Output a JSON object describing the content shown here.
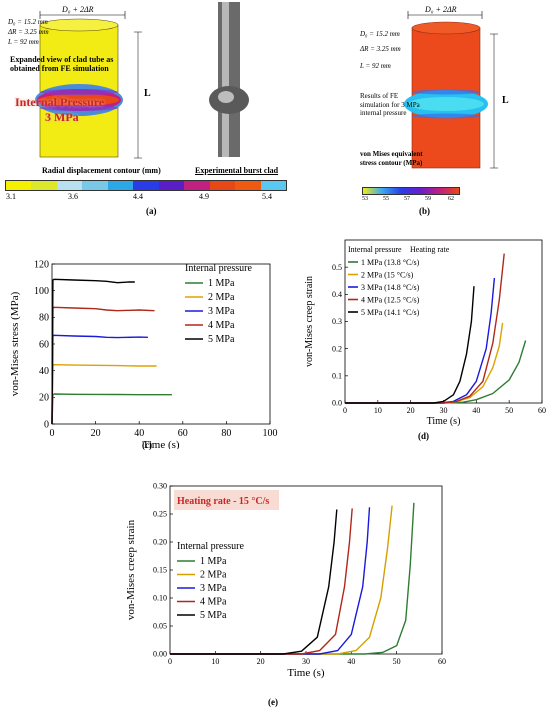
{
  "panel_a": {
    "dim_top": "D₀ + 2ΔR",
    "param_d0": "D₀ = 15.2 mm",
    "param_dr": "ΔR = 3.25 mm",
    "param_l": "L = 92 mm",
    "length_mark": "L",
    "expanded_caption": "Expanded view of clad tube as obtained from FE simulation",
    "pressure_line1": "Internal Pressure",
    "pressure_line2": "3 MPa",
    "contour_title": "Radial displacement contour (mm)",
    "experimental_caption": "Experimental burst clad",
    "colorbar_ticks": [
      "3.1",
      "3.6",
      "4.4",
      "4.9",
      "5.4"
    ],
    "colorbar_colors": [
      "#f4f000",
      "#dce62a",
      "#b8e0ee",
      "#78c8e8",
      "#2aa8e8",
      "#2a3ce8",
      "#5a1ec8",
      "#c02080",
      "#e84818",
      "#f05a10",
      "#5ac8f0"
    ],
    "tag": "(a)"
  },
  "panel_b": {
    "dim_top": "D₀ + 2ΔR",
    "param_d0": "D₀ = 15.2 mm",
    "param_dr": "ΔR = 3.25 mm",
    "param_l": "L = 92 mm",
    "length_mark": "L",
    "results_caption": "Results of FE simulation for 3 MPa internal pressure",
    "contour_title": "von Mises equivalent stress contour (MPa)",
    "colorbar_ticks": [
      "53",
      "55",
      "57",
      "59",
      "62"
    ],
    "tag": "(b)"
  },
  "chart_data": [
    {
      "id": "c",
      "type": "line",
      "xlabel": "Time (s)",
      "ylabel": "von-Mises stress (MPa)",
      "xlim": [
        0,
        100
      ],
      "ylim": [
        0,
        120
      ],
      "xticks": [
        0,
        20,
        40,
        60,
        80,
        100
      ],
      "yticks": [
        0,
        20,
        40,
        60,
        80,
        100,
        120
      ],
      "legend_title": "Internal pressure",
      "legend_position": "top-right",
      "series": [
        {
          "name": "1 MPa",
          "color": "#2e7d32",
          "x": [
            0,
            0.4,
            1,
            10,
            20,
            30,
            40,
            50,
            55
          ],
          "y": [
            0,
            22,
            22.5,
            22.3,
            22.2,
            22.1,
            22.0,
            22.0,
            22.0
          ]
        },
        {
          "name": "2 MPa",
          "color": "#e0a000",
          "x": [
            0,
            0.4,
            1,
            10,
            20,
            30,
            40,
            48
          ],
          "y": [
            0,
            44,
            44.5,
            44.2,
            44.0,
            43.8,
            43.5,
            43.5
          ]
        },
        {
          "name": "3 MPa",
          "color": "#1a1adc",
          "x": [
            0,
            0.4,
            1,
            10,
            20,
            25,
            30,
            40,
            44
          ],
          "y": [
            0,
            66,
            66.5,
            66.0,
            65.6,
            65.0,
            64.8,
            65.2,
            65.0
          ]
        },
        {
          "name": "4 MPa",
          "color": "#b0281a",
          "x": [
            0,
            0.4,
            1,
            10,
            20,
            25,
            30,
            40,
            47
          ],
          "y": [
            0,
            87,
            87.5,
            87.0,
            86.5,
            85.5,
            85.0,
            85.5,
            85.0
          ]
        },
        {
          "name": "5 MPa",
          "color": "#000000",
          "x": [
            0,
            0.4,
            1,
            10,
            20,
            25,
            30,
            35,
            38
          ],
          "y": [
            0,
            108,
            108.5,
            108.0,
            107.5,
            107.0,
            106.0,
            106.5,
            106.5
          ]
        }
      ],
      "tag": "(c)"
    },
    {
      "id": "d",
      "type": "line",
      "xlabel": "Time (s)",
      "ylabel": "von-Mises creep strain",
      "xlim": [
        0,
        60
      ],
      "ylim": [
        0,
        0.6
      ],
      "xticks": [
        0,
        10,
        20,
        30,
        40,
        50,
        60
      ],
      "yticks": [
        0.0,
        0.1,
        0.2,
        0.3,
        0.4,
        0.5
      ],
      "legend_title": "Internal pressure",
      "legend_subtitle": "Heating rate",
      "legend_position": "top-left",
      "series": [
        {
          "name": "1 MPa (13.8 °C/s)",
          "color": "#2e7d32",
          "x": [
            0,
            30,
            36,
            40,
            45,
            50,
            53,
            55
          ],
          "y": [
            0,
            0,
            0.003,
            0.012,
            0.035,
            0.085,
            0.15,
            0.23
          ]
        },
        {
          "name": "2 MPa (15 °C/s)",
          "color": "#e0a000",
          "x": [
            0,
            30,
            34,
            38,
            42,
            45,
            47,
            48
          ],
          "y": [
            0,
            0,
            0.005,
            0.02,
            0.06,
            0.13,
            0.21,
            0.295
          ]
        },
        {
          "name": "3 MPa (14.8 °C/s)",
          "color": "#1a1adc",
          "x": [
            0,
            29,
            33,
            37,
            40,
            43,
            44.5,
            45.5
          ],
          "y": [
            0,
            0,
            0.006,
            0.03,
            0.08,
            0.2,
            0.33,
            0.46
          ]
        },
        {
          "name": "4 MPa (12.5 °C/s)",
          "color": "#b0281a",
          "x": [
            0,
            30,
            34,
            38,
            42,
            45,
            47,
            48.5
          ],
          "y": [
            0,
            0,
            0.006,
            0.025,
            0.08,
            0.22,
            0.38,
            0.55
          ]
        },
        {
          "name": "5 MPa (14.1 °C/s)",
          "color": "#000000",
          "x": [
            0,
            27,
            30,
            33,
            35,
            37,
            38.5,
            39.3
          ],
          "y": [
            0,
            0,
            0.006,
            0.03,
            0.08,
            0.18,
            0.3,
            0.43
          ]
        }
      ],
      "tag": "(d)"
    },
    {
      "id": "e",
      "type": "line",
      "annotation": "Heating rate - 15 °C/s",
      "xlabel": "Time (s)",
      "ylabel": "von-Mises creep strain",
      "xlim": [
        0,
        60
      ],
      "ylim": [
        0,
        0.3
      ],
      "xticks": [
        0,
        10,
        20,
        30,
        40,
        50,
        60
      ],
      "yticks": [
        0.0,
        0.05,
        0.1,
        0.15,
        0.2,
        0.25,
        0.3
      ],
      "legend_title": "Internal pressure",
      "legend_position": "left",
      "series": [
        {
          "name": "1 MPa",
          "color": "#2e7d32",
          "x": [
            0,
            43,
            47,
            50,
            52,
            53,
            53.8
          ],
          "y": [
            0,
            0,
            0.003,
            0.015,
            0.06,
            0.16,
            0.27
          ]
        },
        {
          "name": "2 MPa",
          "color": "#d4a000",
          "x": [
            0,
            37,
            41,
            44,
            46.5,
            48,
            49
          ],
          "y": [
            0,
            0,
            0.006,
            0.03,
            0.1,
            0.19,
            0.265
          ]
        },
        {
          "name": "3 MPa",
          "color": "#1a1adc",
          "x": [
            0,
            33,
            37,
            40,
            42.5,
            43.5,
            44
          ],
          "y": [
            0,
            0,
            0.006,
            0.035,
            0.12,
            0.2,
            0.262
          ]
        },
        {
          "name": "4 MPa",
          "color": "#b0281a",
          "x": [
            0,
            29,
            33,
            36.5,
            38.5,
            39.6,
            40.2
          ],
          "y": [
            0,
            0,
            0.006,
            0.035,
            0.12,
            0.2,
            0.26
          ]
        },
        {
          "name": "5 MPa",
          "color": "#000000",
          "x": [
            0,
            25,
            29,
            32.5,
            35,
            36.2,
            36.8
          ],
          "y": [
            0,
            0,
            0.005,
            0.03,
            0.12,
            0.2,
            0.258
          ]
        }
      ],
      "tag": "(e)"
    }
  ]
}
